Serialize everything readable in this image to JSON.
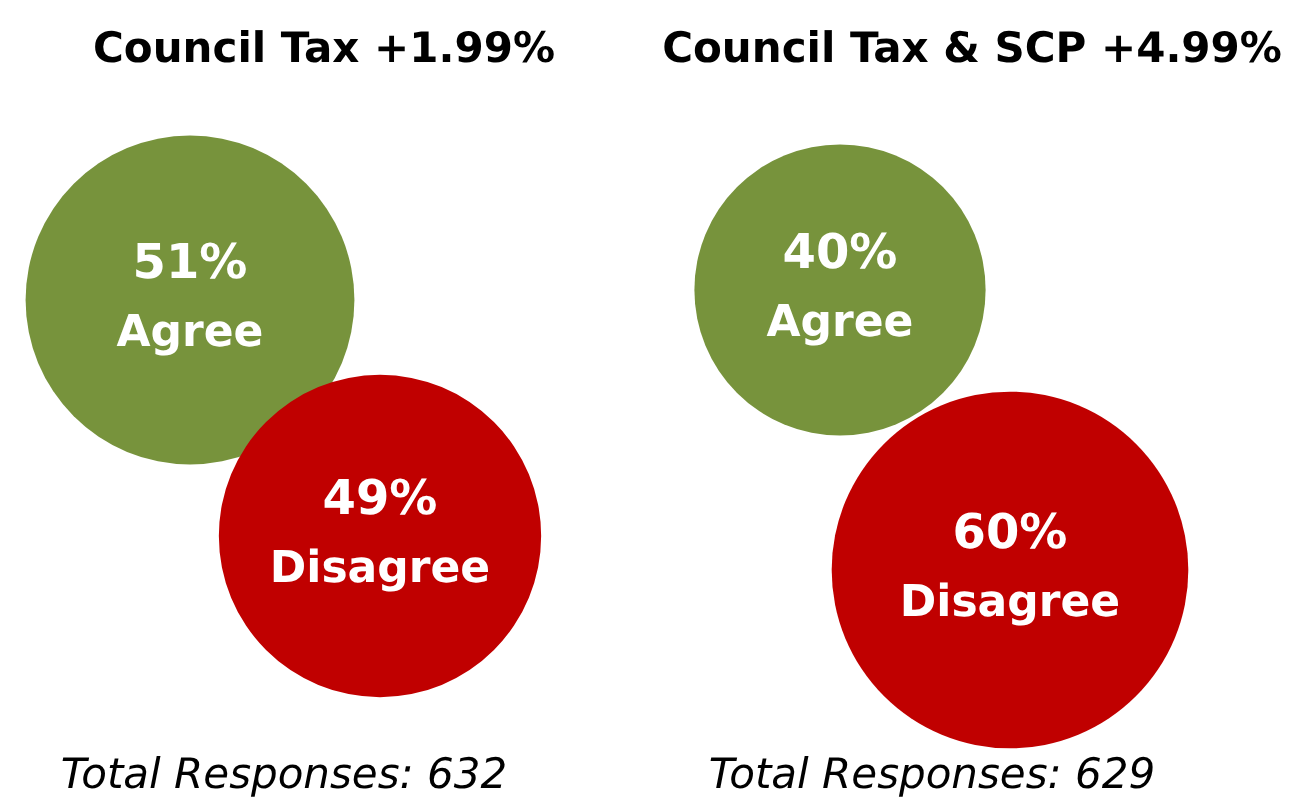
{
  "chart_data": [
    {
      "type": "other",
      "title": "Council Tax +1.99%",
      "categories": [
        "Agree",
        "Disagree"
      ],
      "values": [
        51,
        49
      ],
      "colors": [
        "#77933c",
        "#c00000"
      ],
      "value_labels": [
        "51%",
        "49%"
      ],
      "annotations": [
        "Total Responses: 632"
      ]
    },
    {
      "type": "other",
      "title": "Council Tax & SCP +4.99%",
      "categories": [
        "Agree",
        "Disagree"
      ],
      "values": [
        40,
        60
      ],
      "colors": [
        "#77933c",
        "#c00000"
      ],
      "value_labels": [
        "40%",
        "60%"
      ],
      "annotations": [
        "Total Responses: 629"
      ]
    }
  ]
}
